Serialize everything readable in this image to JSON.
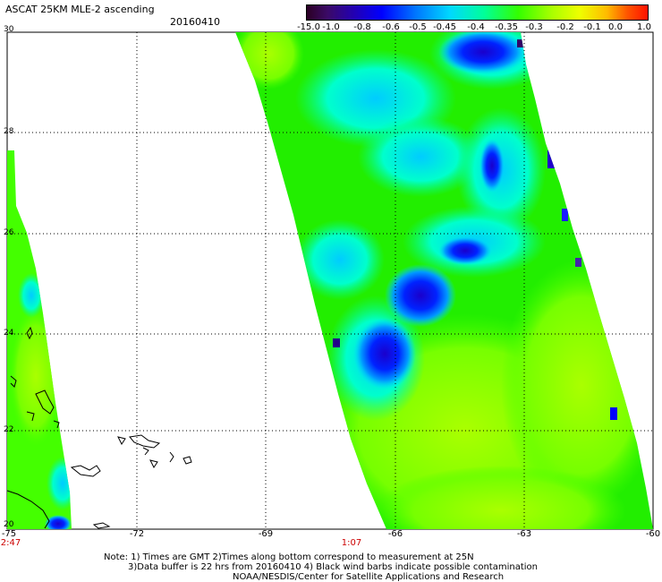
{
  "header": {
    "title": "ASCAT 25KM MLE-2 ascending",
    "date": "20160410"
  },
  "colorbar": {
    "labels": [
      "-15.0",
      "-1.0",
      "-0.8",
      "-0.6",
      "-0.5",
      "-0.45",
      "-0.4",
      "-0.35",
      "-0.3",
      "-0.2",
      "-0.1",
      "0.0",
      "1.0"
    ],
    "colors": [
      "#2b0024",
      "#3b0a66",
      "#2200b4",
      "#0000ff",
      "#0077ff",
      "#00d8ff",
      "#00ff99",
      "#33ff00",
      "#aaff00",
      "#eeff00",
      "#ffbb00",
      "#ff5500",
      "#ff1100"
    ]
  },
  "axes": {
    "lon_labels": [
      "-75",
      "-72",
      "-69",
      "-66",
      "-63",
      "-60"
    ],
    "lat_labels": [
      "30",
      "28",
      "26",
      "24",
      "22",
      "20"
    ]
  },
  "times": {
    "left": "2:47",
    "center": "1:07"
  },
  "notes": {
    "line1": "Note: 1) Times are GMT 2)Times along bottom correspond to measurement at 25N",
    "line2": "3)Data buffer is 22 hrs from 20160410 4) Black wind barbs indicate possible contamination",
    "line3": "NOAA/NESDIS/Center for Satellite Applications and Research"
  }
}
